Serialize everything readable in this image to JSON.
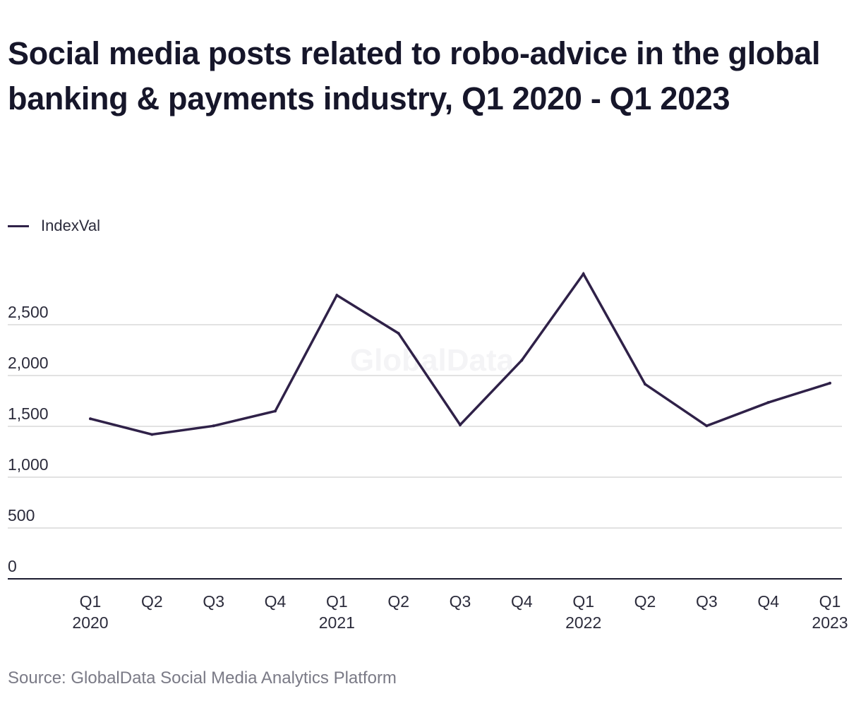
{
  "chart_data": {
    "type": "line",
    "title": "Social media posts related to robo-advice in the global banking & payments industry, Q1 2020 - Q1 2023",
    "source": "Source: GlobalData Social Media Analytics Platform",
    "watermark": "GlobalData",
    "categories": [
      [
        "Q1",
        "2020"
      ],
      [
        "Q2",
        ""
      ],
      [
        "Q3",
        ""
      ],
      [
        "Q4",
        ""
      ],
      [
        "Q1",
        "2021"
      ],
      [
        "Q2",
        ""
      ],
      [
        "Q3",
        ""
      ],
      [
        "Q4",
        ""
      ],
      [
        "Q1",
        "2022"
      ],
      [
        "Q2",
        ""
      ],
      [
        "Q3",
        ""
      ],
      [
        "Q4",
        ""
      ],
      [
        "Q1",
        "2023"
      ]
    ],
    "series": [
      {
        "name": "IndexVal",
        "color": "#2f2148",
        "values": [
          1575,
          1420,
          1505,
          1650,
          2790,
          2415,
          1515,
          2150,
          3000,
          1915,
          1505,
          1735,
          1925
        ]
      }
    ],
    "yticks": [
      0,
      500,
      1000,
      1500,
      2000,
      2500
    ],
    "ytick_labels": [
      "0",
      "500",
      "1,000",
      "1,500",
      "2,000",
      "2,500"
    ],
    "ylim": [
      0,
      3000
    ],
    "grid": true,
    "legend_position": "top-left",
    "colors": {
      "gridline": "#d9d9d9",
      "axis": "#1b1b2f",
      "watermark": "#f4f4f6"
    }
  }
}
